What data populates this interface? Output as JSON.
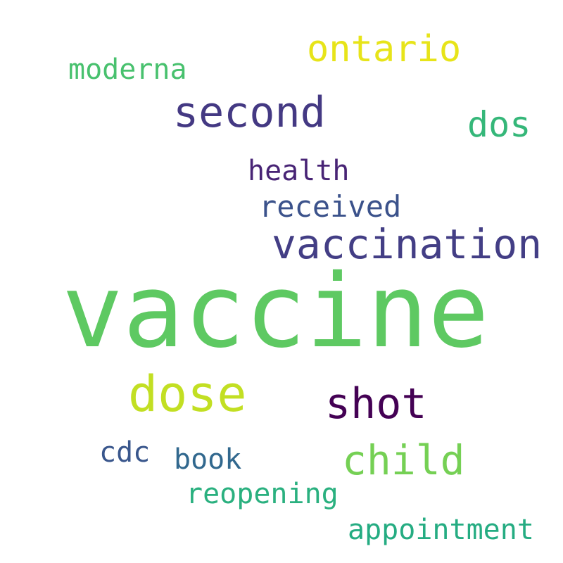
{
  "words": [
    {
      "id": "vaccine",
      "text": "vaccine",
      "color": "#5ec962"
    },
    {
      "id": "vaccination",
      "text": "vaccination",
      "color": "#433e85"
    },
    {
      "id": "second",
      "text": "second",
      "color": "#443983"
    },
    {
      "id": "dose",
      "text": "dose",
      "color": "#c2df23"
    },
    {
      "id": "shot",
      "text": "shot",
      "color": "#440154"
    },
    {
      "id": "child",
      "text": "child",
      "color": "#75d054"
    },
    {
      "id": "ontario",
      "text": "ontario",
      "color": "#e7e419"
    },
    {
      "id": "dos",
      "text": "dos",
      "color": "#35b779"
    },
    {
      "id": "moderna",
      "text": "moderna",
      "color": "#48c16e"
    },
    {
      "id": "health",
      "text": "health",
      "color": "#482475"
    },
    {
      "id": "received",
      "text": "received",
      "color": "#3b528b"
    },
    {
      "id": "cdc",
      "text": "cdc",
      "color": "#39568c"
    },
    {
      "id": "book",
      "text": "book",
      "color": "#31688e"
    },
    {
      "id": "reopening",
      "text": "reopening",
      "color": "#2ab07f"
    },
    {
      "id": "appointment",
      "text": "appointment",
      "color": "#25ac82"
    }
  ]
}
